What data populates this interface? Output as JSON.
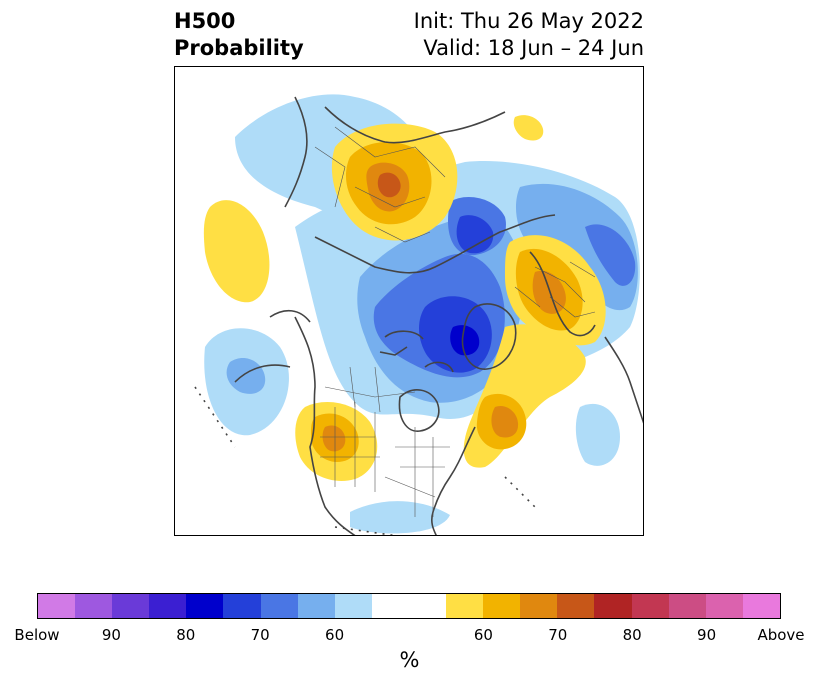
{
  "title": {
    "left_line1": "H500",
    "left_line2": "Probability",
    "right_line1": "Init: Thu 26 May 2022",
    "right_line2": "Valid: 18 Jun – 24 Jun"
  },
  "map": {
    "projection": "polar-stereographic-north",
    "anomaly_centers": [
      {
        "region": "western-siberia",
        "sign": "above",
        "peak_percent": 75
      },
      {
        "region": "north-pole-arctic-ocean",
        "sign": "below",
        "peak_percent": 80
      },
      {
        "region": "canadian-arctic-archipelago",
        "sign": "below",
        "peak_percent": 85
      },
      {
        "region": "eastern-europe",
        "sign": "above",
        "peak_percent": 70
      },
      {
        "region": "labrador-sea",
        "sign": "above",
        "peak_percent": 65
      },
      {
        "region": "western-united-states",
        "sign": "above",
        "peak_percent": 65
      },
      {
        "region": "north-pacific",
        "sign": "below",
        "peak_percent": 60
      },
      {
        "region": "northwest-pacific",
        "sign": "above",
        "peak_percent": 55
      },
      {
        "region": "northeast-asia",
        "sign": "below",
        "peak_percent": 60
      }
    ]
  },
  "colorbar": {
    "colors": [
      "#d17ae6",
      "#9e58e0",
      "#6a3ad8",
      "#3b1fd2",
      "#0000cc",
      "#2440d9",
      "#4a76e4",
      "#76afee",
      "#afdcf8",
      "#ffffff",
      "#ffdf44",
      "#f2b300",
      "#e0880f",
      "#c75718",
      "#b02424",
      "#c23752",
      "#cc4d84",
      "#db62ae",
      "#e979dd"
    ],
    "widths": [
      1,
      1,
      1,
      1,
      1,
      1,
      1,
      1,
      1,
      2,
      1,
      1,
      1,
      1,
      1,
      1,
      1,
      1,
      1
    ],
    "tick_labels": [
      "Below",
      "90",
      "80",
      "70",
      "60",
      "60",
      "70",
      "80",
      "90",
      "Above"
    ],
    "tick_fractions": [
      0,
      0.1,
      0.2,
      0.3,
      0.4,
      0.6,
      0.7,
      0.8,
      0.9,
      1.0
    ],
    "unit": "%"
  }
}
